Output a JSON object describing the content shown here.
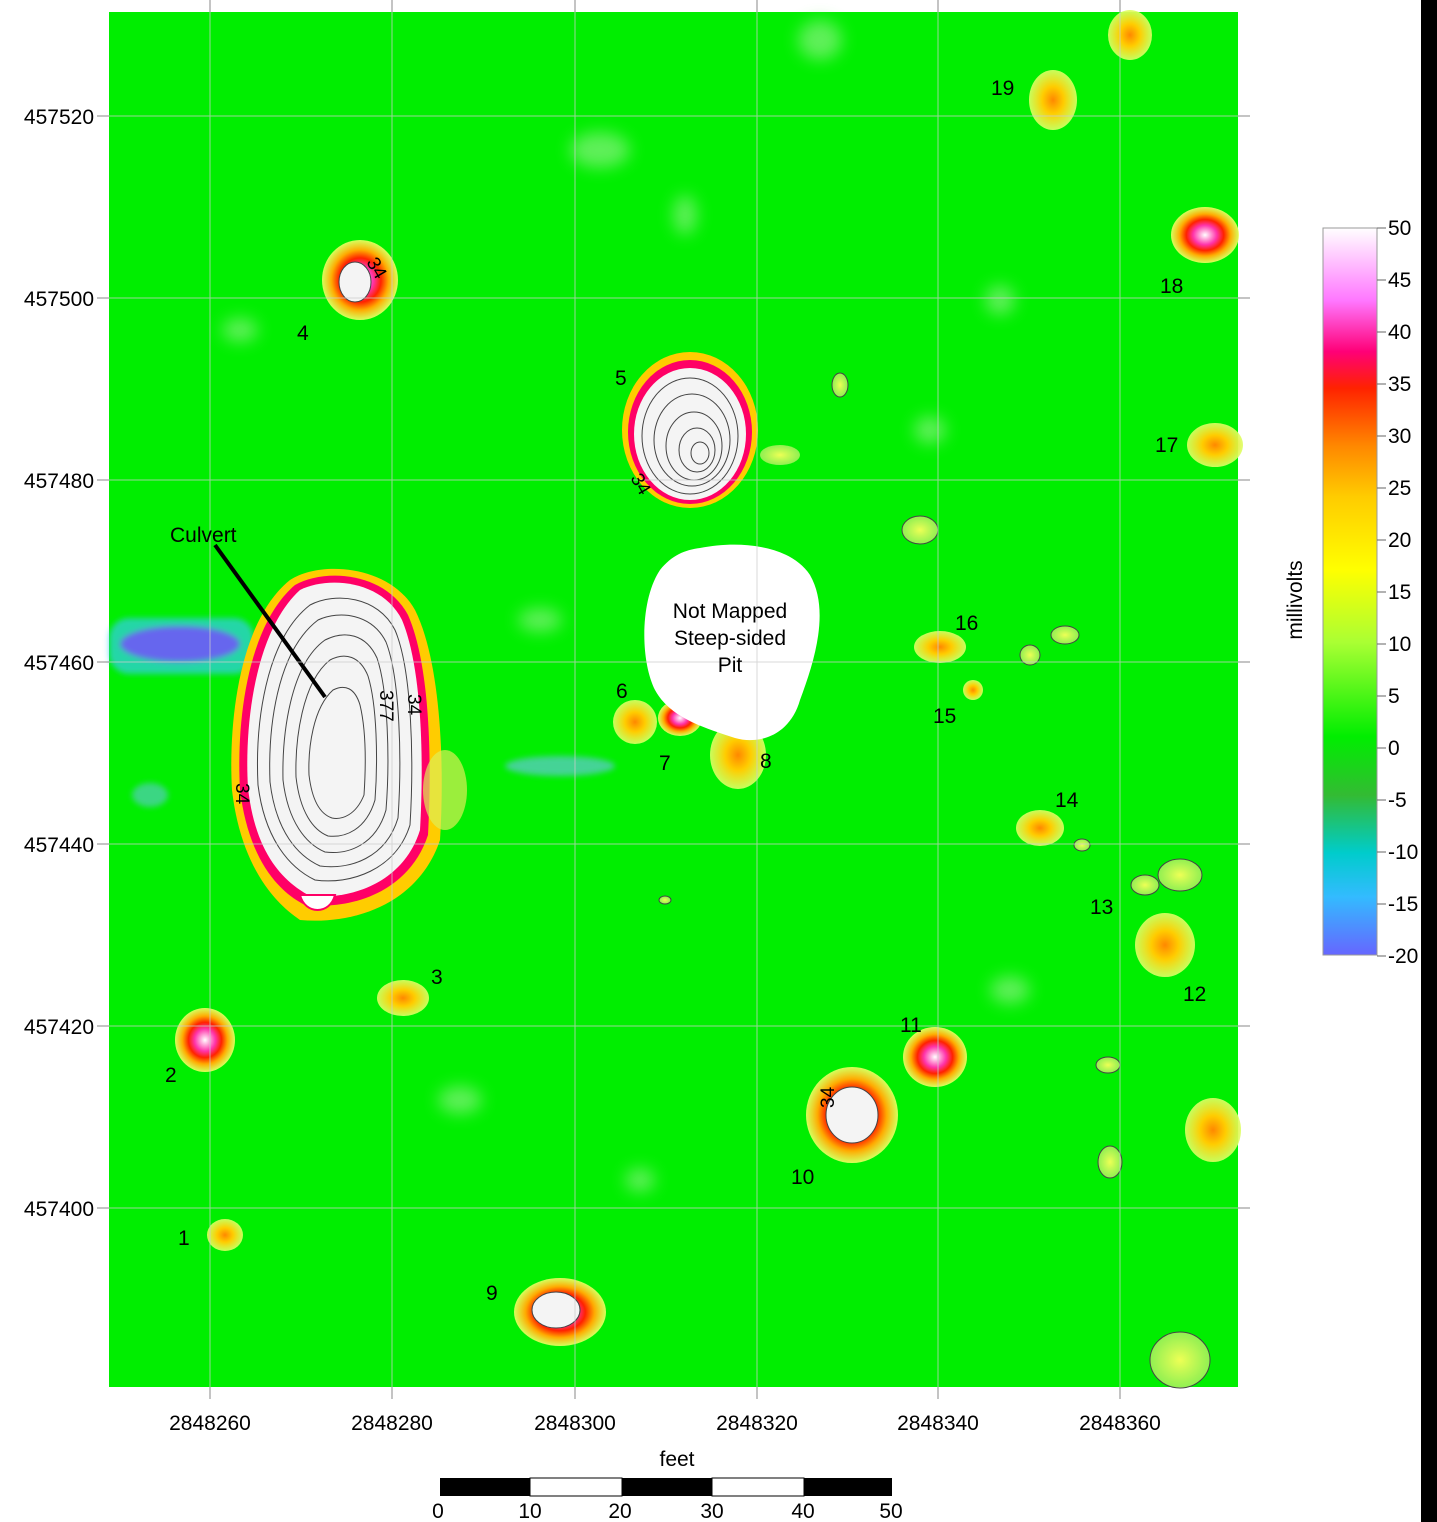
{
  "map": {
    "x_ticks": [
      "2848260",
      "2848280",
      "2848300",
      "2848320",
      "2848340",
      "2848360"
    ],
    "y_ticks": [
      "457520",
      "457500",
      "457480",
      "457460",
      "457440",
      "457420",
      "457400"
    ],
    "x_axis_label": "feet",
    "culvert_label": "Culvert",
    "pit_label_lines": [
      "Not Mapped",
      "Steep-sided",
      "Pit"
    ],
    "anomalies": [
      {
        "id": "1"
      },
      {
        "id": "2"
      },
      {
        "id": "3"
      },
      {
        "id": "4"
      },
      {
        "id": "5"
      },
      {
        "id": "6"
      },
      {
        "id": "7"
      },
      {
        "id": "8"
      },
      {
        "id": "9"
      },
      {
        "id": "10"
      },
      {
        "id": "11"
      },
      {
        "id": "12"
      },
      {
        "id": "13"
      },
      {
        "id": "14"
      },
      {
        "id": "15"
      },
      {
        "id": "16"
      },
      {
        "id": "17"
      },
      {
        "id": "18"
      },
      {
        "id": "19"
      }
    ],
    "contour_labels": [
      "34",
      "34",
      "34",
      "34",
      "377",
      "34",
      "34"
    ]
  },
  "scale_bar": {
    "ticks": [
      "0",
      "10",
      "20",
      "30",
      "40",
      "50"
    ]
  },
  "colorbar": {
    "label": "millivolts",
    "ticks": [
      "50",
      "45",
      "40",
      "35",
      "30",
      "25",
      "20",
      "15",
      "10",
      "5",
      "0",
      "-5",
      "-10",
      "-15",
      "-20"
    ],
    "stops": [
      "#ffffff",
      "#ff66ff",
      "#ff0066",
      "#ff3300",
      "#ff9900",
      "#ffcc00",
      "#ffff00",
      "#ccff33",
      "#00ee00",
      "#33cc33",
      "#00cccc",
      "#33ccff",
      "#6666ff"
    ]
  },
  "colors": {
    "background": "#00ee00",
    "anomaly_low": "#ffee33",
    "anomaly_mid": "#ff9900",
    "anomaly_high": "#ff0066",
    "anomaly_peak": "#ffffff",
    "negative": "#5566ee"
  }
}
